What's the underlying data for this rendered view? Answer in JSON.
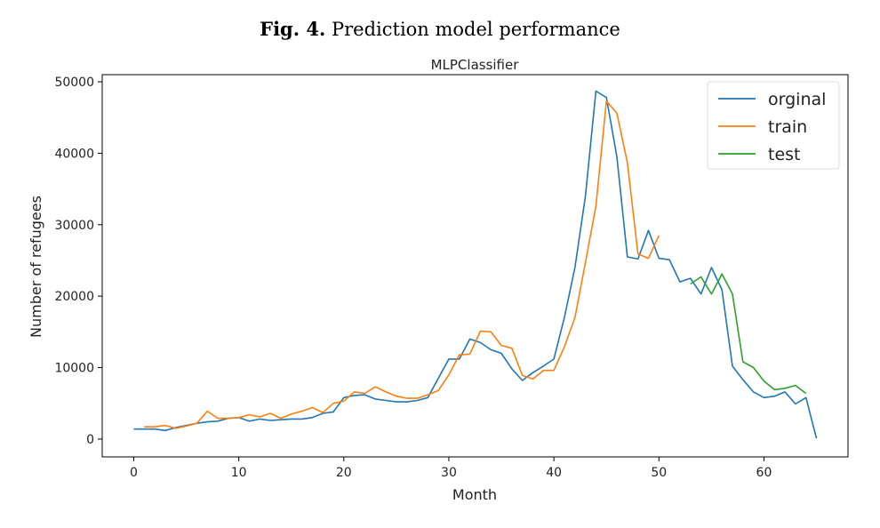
{
  "caption": {
    "label": "Fig. 4.",
    "text": "Prediction model performance"
  },
  "chart_data": {
    "type": "line",
    "title": "MLPClassifier",
    "xlabel": "Month",
    "ylabel": "Number of refugees",
    "xlim": [
      -3,
      68
    ],
    "ylim": [
      -2500,
      51000
    ],
    "xticks": [
      0,
      10,
      20,
      30,
      40,
      50,
      60
    ],
    "yticks": [
      0,
      10000,
      20000,
      30000,
      40000,
      50000
    ],
    "grid": false,
    "legend_position": "top-right",
    "series": [
      {
        "name": "orginal",
        "color": "#1f77b4",
        "x": [
          0,
          1,
          2,
          3,
          4,
          5,
          6,
          7,
          8,
          9,
          10,
          11,
          12,
          13,
          14,
          15,
          16,
          17,
          18,
          19,
          20,
          21,
          22,
          23,
          24,
          25,
          26,
          27,
          28,
          29,
          30,
          31,
          32,
          33,
          34,
          35,
          36,
          37,
          38,
          39,
          40,
          41,
          42,
          43,
          44,
          45,
          46,
          47,
          48,
          49,
          50,
          51,
          52,
          53,
          54,
          55,
          56,
          57,
          58,
          59,
          60,
          61,
          62,
          63,
          64,
          65
        ],
        "y": [
          1400,
          1400,
          1400,
          1200,
          1600,
          1900,
          2200,
          2400,
          2500,
          2900,
          3000,
          2500,
          2800,
          2600,
          2700,
          2800,
          2800,
          3000,
          3600,
          3800,
          5800,
          6100,
          6200,
          5600,
          5400,
          5200,
          5200,
          5400,
          5800,
          8500,
          11200,
          11200,
          14000,
          13500,
          12500,
          12000,
          9800,
          8200,
          9300,
          10200,
          11200,
          17000,
          24000,
          34000,
          48700,
          47800,
          39500,
          25500,
          25200,
          29200,
          25300,
          25100,
          22000,
          22500,
          20300,
          24000,
          20900,
          10200,
          8300,
          6600,
          5800,
          6000,
          6600,
          4900,
          5800,
          100
        ]
      },
      {
        "name": "train",
        "color": "#ff7f0e",
        "x": [
          1,
          2,
          3,
          4,
          5,
          6,
          7,
          8,
          9,
          10,
          11,
          12,
          13,
          14,
          15,
          16,
          17,
          18,
          19,
          20,
          21,
          22,
          23,
          24,
          25,
          26,
          27,
          28,
          29,
          30,
          31,
          32,
          33,
          34,
          35,
          36,
          37,
          38,
          39,
          40,
          41,
          42,
          43,
          44,
          45,
          46,
          47,
          48,
          49,
          50
        ],
        "y": [
          1700,
          1700,
          1900,
          1500,
          1800,
          2200,
          3900,
          2900,
          2900,
          3000,
          3400,
          3100,
          3600,
          2900,
          3500,
          3900,
          4400,
          3700,
          5000,
          5300,
          6600,
          6400,
          7300,
          6600,
          6000,
          5700,
          5700,
          6200,
          6800,
          9000,
          11800,
          11900,
          15100,
          15000,
          13100,
          12700,
          8900,
          8400,
          9600,
          9600,
          12900,
          17000,
          24700,
          32600,
          47300,
          45600,
          38700,
          25900,
          25300,
          28500
        ]
      },
      {
        "name": "test",
        "color": "#2ca02c",
        "x": [
          53,
          54,
          55,
          56,
          57,
          58,
          59,
          60,
          61,
          62,
          63,
          64
        ],
        "y": [
          21700,
          22700,
          20300,
          23100,
          20300,
          10800,
          10000,
          8100,
          6900,
          7100,
          7500,
          6400
        ]
      }
    ]
  }
}
